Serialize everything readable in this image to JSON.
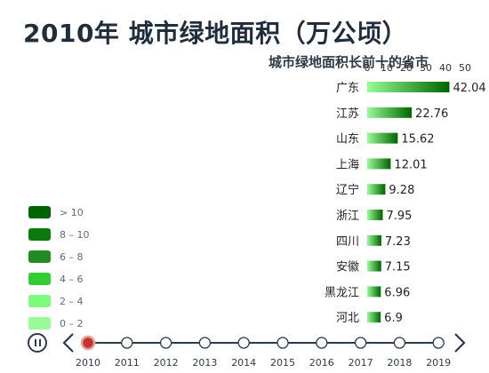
{
  "title": "2010年  城市绿地面积（万公顷）",
  "legend": [
    {
      "label": "> 10",
      "color": "#006400"
    },
    {
      "label": "8 – 10",
      "color": "#0b7a0b"
    },
    {
      "label": "6 – 8",
      "color": "#228b22"
    },
    {
      "label": "4 – 6",
      "color": "#32cd32"
    },
    {
      "label": "2 – 4",
      "color": "#7cfc7c"
    },
    {
      "label": "0 – 2",
      "color": "#98fb98"
    }
  ],
  "timeline": {
    "years": [
      "2010",
      "2011",
      "2012",
      "2013",
      "2014",
      "2015",
      "2016",
      "2017",
      "2018",
      "2019"
    ],
    "current": "2010",
    "prev_icon": "chevron-left-icon",
    "next_icon": "chevron-right-icon",
    "play_icon": "pause-icon"
  },
  "chart_data": {
    "type": "bar",
    "orientation": "horizontal",
    "title": "城市绿地面积长前十的省市",
    "categories": [
      "广东",
      "江苏",
      "山东",
      "上海",
      "辽宁",
      "浙江",
      "四川",
      "安徽",
      "黑龙江",
      "河北"
    ],
    "values": [
      42.04,
      22.76,
      15.62,
      12.01,
      9.28,
      7.95,
      7.23,
      7.15,
      6.96,
      6.9
    ],
    "value_labels": [
      "42.04",
      "22.76",
      "15.62",
      "12.01",
      "9.28",
      "7.95",
      "7.23",
      "7.15",
      "6.96",
      "6.9"
    ],
    "xticks": [
      "0",
      "10",
      "20",
      "30",
      "40",
      "50"
    ],
    "xlim": [
      0,
      50
    ],
    "bar_gradient": [
      "#98fb98",
      "#006400"
    ]
  }
}
